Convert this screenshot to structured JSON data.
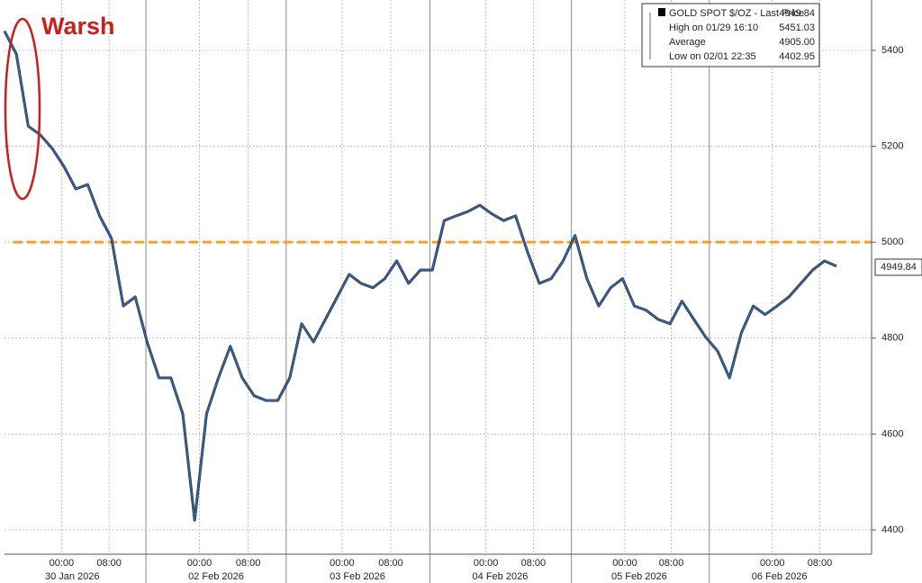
{
  "chart_data": {
    "type": "line",
    "series": [
      {
        "name": "GOLD SPOT $/OZ - Last Price",
        "color": "#2f66aa",
        "values": [
          5440,
          5392,
          5242,
          5224,
          5196,
          5158,
          5111,
          5120,
          5055,
          5008,
          4867,
          4886,
          4792,
          4717,
          4717,
          4642,
          4420,
          4642,
          4717,
          4783,
          4717,
          4680,
          4670,
          4670,
          4717,
          4830,
          4792,
          4839,
          4886,
          4933,
          4914,
          4905,
          4924,
          4961,
          4914,
          4942,
          4942,
          5045,
          5055,
          5064,
          5077,
          5059,
          5045,
          5055,
          4980,
          4914,
          4924,
          4961,
          5014,
          4924,
          4867,
          4905,
          4924,
          4867,
          4858,
          4839,
          4830,
          4877,
          4839,
          4802,
          4773,
          4717,
          4811,
          4867,
          4849,
          4867,
          4886,
          4914,
          4942,
          4961,
          4949.84
        ]
      }
    ],
    "xlim": [
      0,
      73
    ],
    "ylim": [
      4370,
      5505
    ],
    "yticks": [
      4400,
      4600,
      4800,
      5000,
      5200,
      5400
    ],
    "xticks": [
      {
        "value": 4.8,
        "label": "00:00"
      },
      {
        "value": 8.8,
        "label": "08:00"
      },
      {
        "value": 16.4,
        "label": "00:00"
      },
      {
        "value": 20.5,
        "label": "08:00"
      },
      {
        "value": 28.4,
        "label": "00:00"
      },
      {
        "value": 32.5,
        "label": "08:00"
      },
      {
        "value": 40.5,
        "label": "00:00"
      },
      {
        "value": 44.5,
        "label": "08:00"
      },
      {
        "value": 52.2,
        "label": "00:00"
      },
      {
        "value": 56.1,
        "label": "08:00"
      },
      {
        "value": 64.6,
        "label": "00:00"
      },
      {
        "value": 68.6,
        "label": "08:00"
      }
    ],
    "date_labels": [
      {
        "value": 5.7,
        "label": "30 Jan 2026"
      },
      {
        "value": 17.8,
        "label": "02 Feb 2026"
      },
      {
        "value": 29.7,
        "label": "03 Feb 2026"
      },
      {
        "value": 41.7,
        "label": "04 Feb 2026"
      },
      {
        "value": 53.4,
        "label": "05 Feb 2026"
      },
      {
        "value": 65.2,
        "label": "06 Feb 2026"
      }
    ],
    "day_breaks": [
      11.9,
      23.7,
      35.8,
      47.7,
      59.3
    ],
    "reference_line": {
      "value": 5000,
      "color": "#f5a31f"
    },
    "grid": true,
    "annotation": "Warsh",
    "last_price_label": 4949.84,
    "legend": {
      "entries": [
        {
          "label": "GOLD SPOT $/OZ - Last Price",
          "value": 4949.84
        },
        {
          "label": "High on 01/29 16:10",
          "value": 5451.03
        },
        {
          "label": "Average",
          "value": {
            "value": 4905,
            "label": "4905.00"
          }
        },
        {
          "label": "Low on 02/01 22:35",
          "value": 4402.95
        }
      ]
    }
  }
}
